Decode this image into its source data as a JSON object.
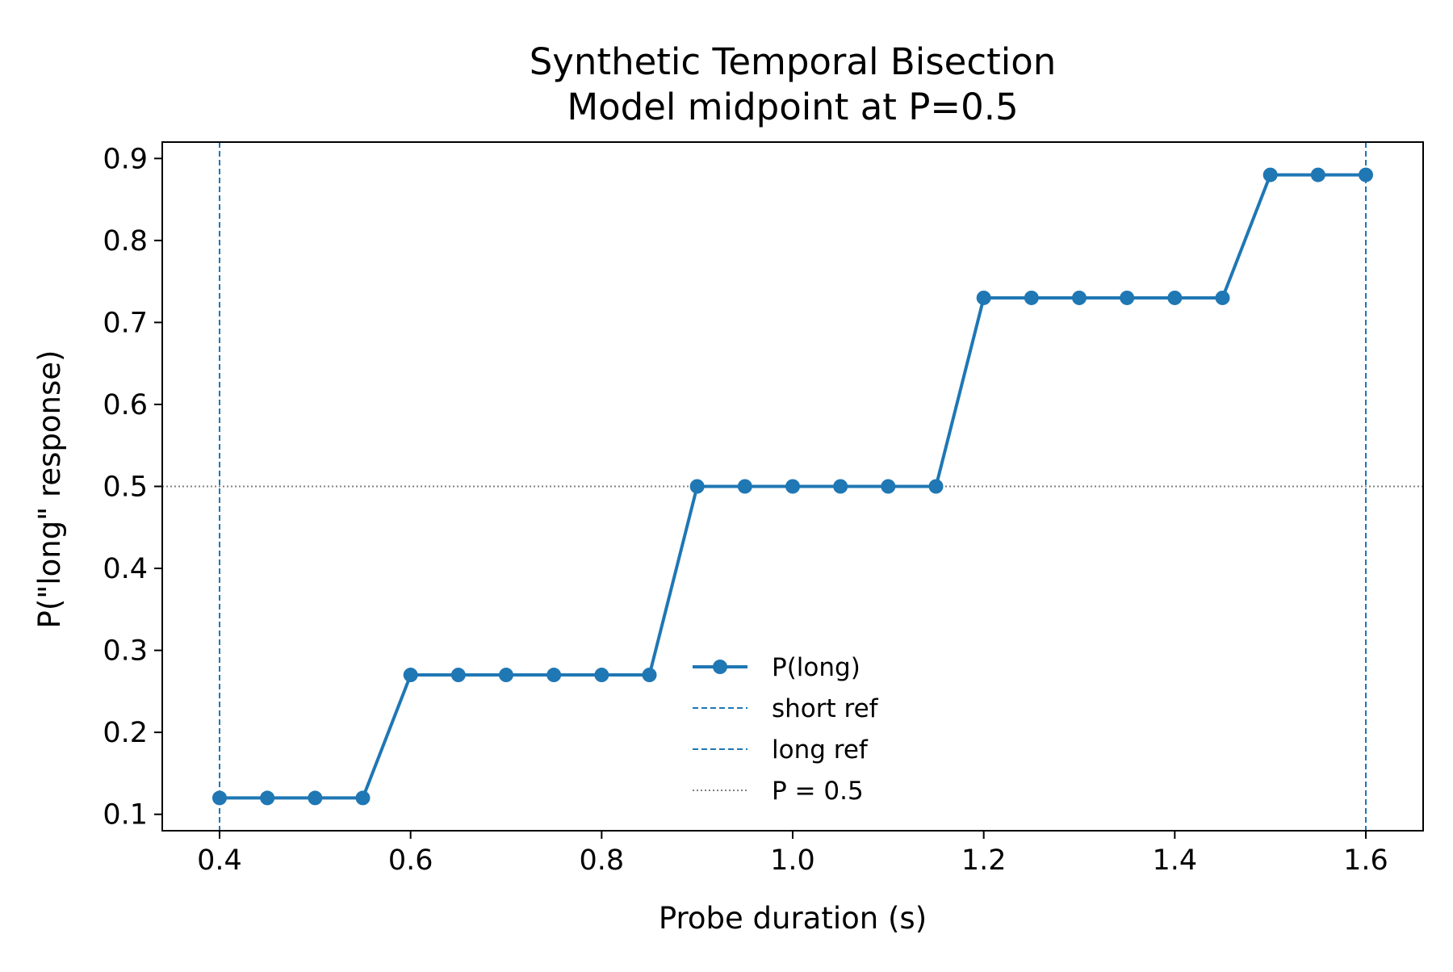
{
  "chart_data": {
    "type": "line",
    "title": "Synthetic Temporal Bisection",
    "subtitle": "Model midpoint at P=0.5",
    "xlabel": "Probe duration (s)",
    "ylabel": "P(\"long\" response)",
    "xlim": [
      0.34,
      1.66
    ],
    "ylim": [
      0.08,
      0.92
    ],
    "xticks": [
      0.4,
      0.6,
      0.8,
      1.0,
      1.2,
      1.4,
      1.6
    ],
    "xtick_labels": [
      "0.4",
      "0.6",
      "0.8",
      "1.0",
      "1.2",
      "1.4",
      "1.6"
    ],
    "yticks": [
      0.1,
      0.2,
      0.3,
      0.4,
      0.5,
      0.6,
      0.7,
      0.8,
      0.9
    ],
    "ytick_labels": [
      "0.1",
      "0.2",
      "0.3",
      "0.4",
      "0.5",
      "0.6",
      "0.7",
      "0.8",
      "0.9"
    ],
    "grid": false,
    "legend_position": "center-bottom",
    "x": [
      0.4,
      0.45,
      0.5,
      0.55,
      0.6,
      0.65,
      0.7,
      0.75,
      0.8,
      0.85,
      0.9,
      0.95,
      1.0,
      1.05,
      1.1,
      1.15,
      1.2,
      1.25,
      1.3,
      1.35,
      1.4,
      1.45,
      1.5,
      1.55,
      1.6
    ],
    "series": [
      {
        "name": "P(long)",
        "color": "#1f77b4",
        "style": "solid-with-markers",
        "values": [
          0.12,
          0.12,
          0.12,
          0.12,
          0.27,
          0.27,
          0.27,
          0.27,
          0.27,
          0.27,
          0.5,
          0.5,
          0.5,
          0.5,
          0.5,
          0.5,
          0.73,
          0.73,
          0.73,
          0.73,
          0.73,
          0.73,
          0.88,
          0.88,
          0.88
        ]
      }
    ],
    "reference_lines": [
      {
        "name": "short ref",
        "orientation": "vertical",
        "value": 0.4,
        "color": "#1f77b4",
        "style": "dashed"
      },
      {
        "name": "long ref",
        "orientation": "vertical",
        "value": 1.6,
        "color": "#1f77b4",
        "style": "dashed"
      },
      {
        "name": "P = 0.5",
        "orientation": "horizontal",
        "value": 0.5,
        "color": "#808080",
        "style": "dotted"
      }
    ],
    "legend": [
      "P(long)",
      "short ref",
      "long ref",
      "P = 0.5"
    ]
  }
}
